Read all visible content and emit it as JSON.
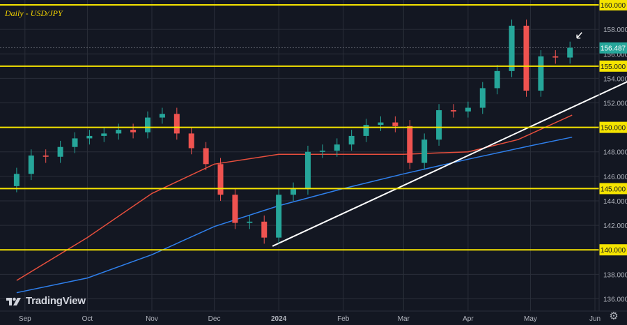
{
  "title": "Daily - USD/JPY",
  "logo_text": "TradingView",
  "settings_icon": "gear-icon",
  "colors": {
    "background": "#131722",
    "grid": "#2a2e39",
    "up": "#26a69a",
    "down": "#ef5350",
    "level": "#f5e400",
    "ma_red": "#e84f3d",
    "ma_blue": "#2f80ed",
    "trendline": "#ffffff",
    "axis_text": "#b2b5be"
  },
  "chart_data": {
    "type": "candlestick",
    "title": "Daily - USD/JPY",
    "ylim": [
      135.0,
      160.4
    ],
    "y_ticks": [
      "136.000",
      "138.000",
      "140.000",
      "142.000",
      "144.000",
      "146.000",
      "148.000",
      "150.000",
      "152.000",
      "154.000",
      "156.000",
      "158.000",
      "160.000"
    ],
    "x_ticks": [
      "Sep",
      "Oct",
      "Nov",
      "Dec",
      "2024",
      "Feb",
      "Mar",
      "Apr",
      "May",
      "Jun"
    ],
    "highlighted_levels": [
      "140.000",
      "145.000",
      "150.000",
      "155.000",
      "160.000"
    ],
    "last_price": "156.487",
    "closes": [
      {
        "date": "2023-08-28",
        "close": 146.2
      },
      {
        "date": "2023-09-04",
        "close": 147.7
      },
      {
        "date": "2023-09-11",
        "close": 147.6
      },
      {
        "date": "2023-09-18",
        "close": 148.4
      },
      {
        "date": "2023-09-25",
        "close": 149.1
      },
      {
        "date": "2023-10-02",
        "close": 149.3
      },
      {
        "date": "2023-10-09",
        "close": 149.5
      },
      {
        "date": "2023-10-16",
        "close": 149.8
      },
      {
        "date": "2023-10-23",
        "close": 149.6
      },
      {
        "date": "2023-10-30",
        "close": 150.8
      },
      {
        "date": "2023-11-06",
        "close": 151.1
      },
      {
        "date": "2023-11-13",
        "close": 149.5
      },
      {
        "date": "2023-11-20",
        "close": 148.3
      },
      {
        "date": "2023-11-27",
        "close": 147.0
      },
      {
        "date": "2023-12-04",
        "close": 144.5
      },
      {
        "date": "2023-12-11",
        "close": 142.2
      },
      {
        "date": "2023-12-18",
        "close": 142.3
      },
      {
        "date": "2023-12-25",
        "close": 141.0
      },
      {
        "date": "2024-01-01",
        "close": 144.5
      },
      {
        "date": "2024-01-08",
        "close": 145.0
      },
      {
        "date": "2024-01-15",
        "close": 148.0
      },
      {
        "date": "2024-01-22",
        "close": 148.1
      },
      {
        "date": "2024-01-29",
        "close": 148.6
      },
      {
        "date": "2024-02-05",
        "close": 149.3
      },
      {
        "date": "2024-02-12",
        "close": 150.2
      },
      {
        "date": "2024-02-19",
        "close": 150.4
      },
      {
        "date": "2024-02-26",
        "close": 150.1
      },
      {
        "date": "2024-03-04",
        "close": 147.1
      },
      {
        "date": "2024-03-11",
        "close": 149.0
      },
      {
        "date": "2024-03-18",
        "close": 151.4
      },
      {
        "date": "2024-03-25",
        "close": 151.3
      },
      {
        "date": "2024-04-01",
        "close": 151.6
      },
      {
        "date": "2024-04-08",
        "close": 153.2
      },
      {
        "date": "2024-04-15",
        "close": 154.6
      },
      {
        "date": "2024-04-22",
        "close": 158.3
      },
      {
        "date": "2024-04-29",
        "close": 153.0
      },
      {
        "date": "2024-05-06",
        "close": 155.8
      },
      {
        "date": "2024-05-13",
        "close": 155.7
      },
      {
        "date": "2024-05-20",
        "close": 156.5
      }
    ],
    "ma_red": [
      {
        "date": "2023-08-28",
        "value": 137.5
      },
      {
        "date": "2023-10-01",
        "value": 141.0
      },
      {
        "date": "2023-11-01",
        "value": 144.6
      },
      {
        "date": "2023-12-01",
        "value": 147.0
      },
      {
        "date": "2024-01-01",
        "value": 147.8
      },
      {
        "date": "2024-02-01",
        "value": 147.8
      },
      {
        "date": "2024-03-01",
        "value": 147.8
      },
      {
        "date": "2024-04-01",
        "value": 148.0
      },
      {
        "date": "2024-04-25",
        "value": 149.0
      },
      {
        "date": "2024-05-21",
        "value": 151.0
      }
    ],
    "ma_blue": [
      {
        "date": "2023-08-28",
        "value": 136.5
      },
      {
        "date": "2023-10-01",
        "value": 137.7
      },
      {
        "date": "2023-11-01",
        "value": 139.6
      },
      {
        "date": "2023-12-01",
        "value": 141.9
      },
      {
        "date": "2024-01-01",
        "value": 143.6
      },
      {
        "date": "2024-02-01",
        "value": 145.0
      },
      {
        "date": "2024-03-01",
        "value": 146.2
      },
      {
        "date": "2024-04-01",
        "value": 147.4
      },
      {
        "date": "2024-05-01",
        "value": 148.5
      },
      {
        "date": "2024-05-21",
        "value": 149.2
      }
    ],
    "trendline": {
      "from": {
        "date": "2023-12-29",
        "value": 140.3
      },
      "to": {
        "date": "2024-06-20",
        "value": 154.0
      }
    }
  }
}
